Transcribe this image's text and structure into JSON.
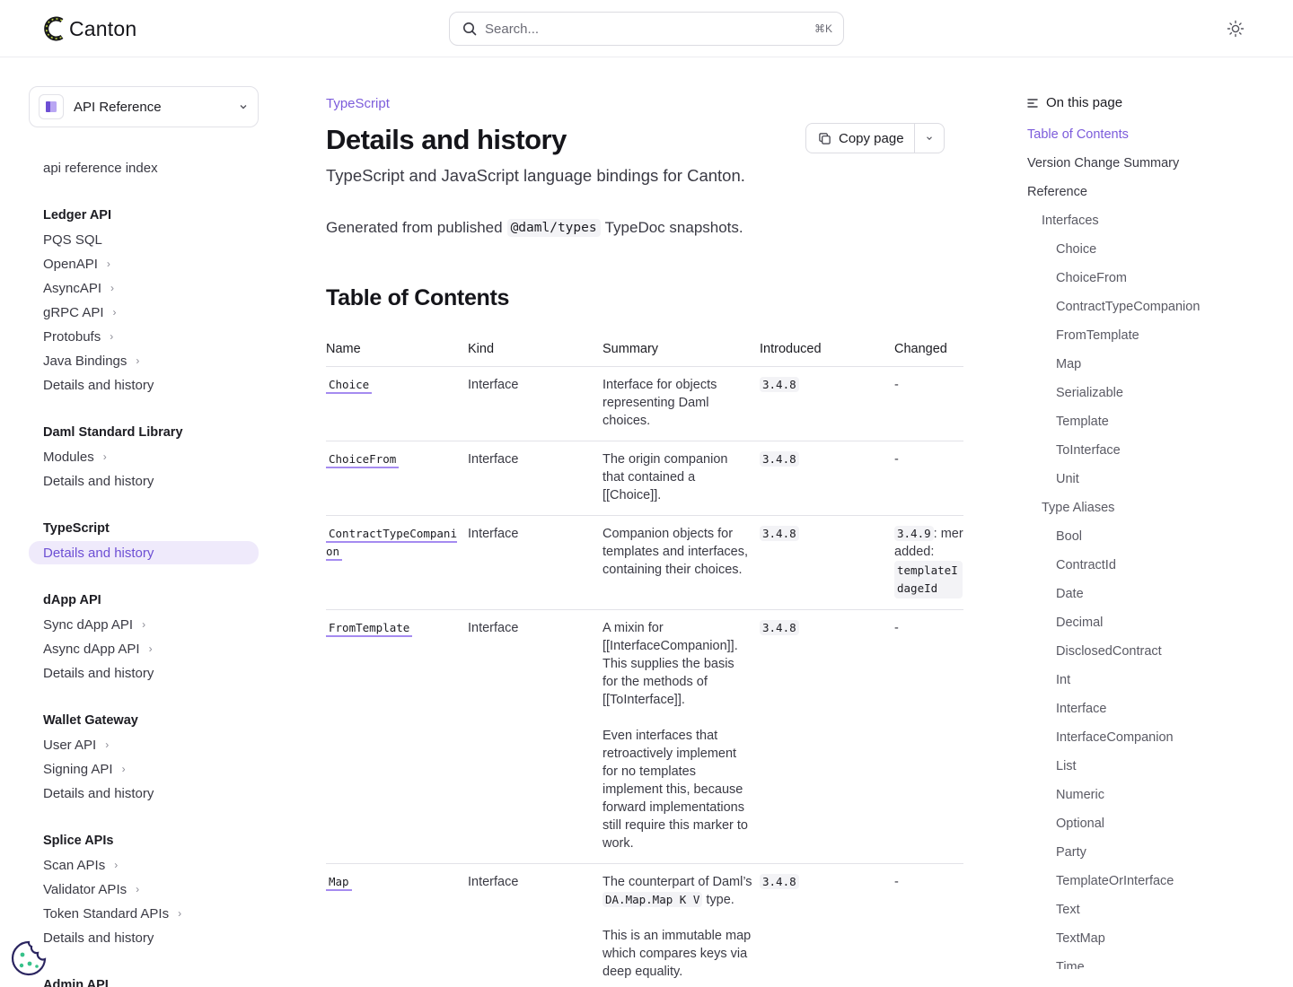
{
  "header": {
    "brand": "Canton",
    "search_placeholder": "Search...",
    "search_shortcut": "⌘K"
  },
  "sidebar": {
    "selector_label": "API Reference",
    "index_link": "api reference index",
    "sections": [
      {
        "heading": "Ledger API",
        "items": [
          {
            "label": "PQS SQL",
            "expandable": false
          },
          {
            "label": "OpenAPI",
            "expandable": true
          },
          {
            "label": "AsyncAPI",
            "expandable": true
          },
          {
            "label": "gRPC API",
            "expandable": true
          },
          {
            "label": "Protobufs",
            "expandable": true
          },
          {
            "label": "Java Bindings",
            "expandable": true
          },
          {
            "label": "Details and history",
            "expandable": false
          }
        ]
      },
      {
        "heading": "Daml Standard Library",
        "items": [
          {
            "label": "Modules",
            "expandable": true
          },
          {
            "label": "Details and history",
            "expandable": false
          }
        ]
      },
      {
        "heading": "TypeScript",
        "items": [
          {
            "label": "Details and history",
            "expandable": false,
            "active": true
          }
        ]
      },
      {
        "heading": "dApp API",
        "items": [
          {
            "label": "Sync dApp API",
            "expandable": true
          },
          {
            "label": "Async dApp API",
            "expandable": true
          },
          {
            "label": "Details and history",
            "expandable": false
          }
        ]
      },
      {
        "heading": "Wallet Gateway",
        "items": [
          {
            "label": "User API",
            "expandable": true
          },
          {
            "label": "Signing API",
            "expandable": true
          },
          {
            "label": "Details and history",
            "expandable": false
          }
        ]
      },
      {
        "heading": "Splice APIs",
        "items": [
          {
            "label": "Scan APIs",
            "expandable": true
          },
          {
            "label": "Validator APIs",
            "expandable": true
          },
          {
            "label": "Token Standard APIs",
            "expandable": true
          },
          {
            "label": "Details and history",
            "expandable": false
          }
        ]
      },
      {
        "heading": "Admin API",
        "items": []
      }
    ]
  },
  "main": {
    "breadcrumb": "TypeScript",
    "title": "Details and history",
    "copy_label": "Copy page",
    "subtitle": "TypeScript and JavaScript language bindings for Canton.",
    "generated_prefix": "Generated from published",
    "generated_code": "@daml/types",
    "generated_suffix": "TypeDoc snapshots.",
    "toc_heading": "Table of Contents",
    "table": {
      "headers": [
        "Name",
        "Kind",
        "Summary",
        "Introduced",
        "Changed"
      ],
      "rows": [
        {
          "name": "Choice",
          "kind": "Interface",
          "summary": [
            "Interface for objects representing Daml choices."
          ],
          "introduced": "3.4.8",
          "changed": "-"
        },
        {
          "name": "ChoiceFrom",
          "kind": "Interface",
          "summary": [
            "The origin companion that contained a [[Choice]]."
          ],
          "introduced": "3.4.8",
          "changed": "-"
        },
        {
          "name": "ContractTypeCompanion",
          "kind": "Interface",
          "summary": [
            "Companion objects for templates and interfaces, containing their choices."
          ],
          "introduced": "3.4.8",
          "changed_version": "3.4.9",
          "changed_text": ": mer added:",
          "changed_code": "templateIdageId"
        },
        {
          "name": "FromTemplate",
          "kind": "Interface",
          "summary": [
            "A mixin for [[InterfaceCompanion]]. This supplies the basis for the methods of [[ToInterface]].",
            "Even interfaces that retroactively implement for no templates implement this, because forward implementations still require this marker to work."
          ],
          "introduced": "3.4.8",
          "changed": "-"
        },
        {
          "name": "Map",
          "kind": "Interface",
          "summary_prefix": "The counterpart of Daml’s",
          "summary_code": "DA.Map.Map K V",
          "summary_suffix": "type.",
          "summary_extra": "This is an immutable map which compares keys via deep equality.",
          "introduced": "3.4.8",
          "changed": "-"
        }
      ]
    }
  },
  "rail": {
    "heading": "On this page",
    "items": [
      {
        "label": "Table of Contents",
        "level": 1,
        "current": true
      },
      {
        "label": "Version Change Summary",
        "level": 1
      },
      {
        "label": "Reference",
        "level": 1
      },
      {
        "label": "Interfaces",
        "level": 2
      },
      {
        "label": "Choice",
        "level": 3
      },
      {
        "label": "ChoiceFrom",
        "level": 3
      },
      {
        "label": "ContractTypeCompanion",
        "level": 3
      },
      {
        "label": "FromTemplate",
        "level": 3
      },
      {
        "label": "Map",
        "level": 3
      },
      {
        "label": "Serializable",
        "level": 3
      },
      {
        "label": "Template",
        "level": 3
      },
      {
        "label": "ToInterface",
        "level": 3
      },
      {
        "label": "Unit",
        "level": 3
      },
      {
        "label": "Type Aliases",
        "level": 2
      },
      {
        "label": "Bool",
        "level": 3
      },
      {
        "label": "ContractId",
        "level": 3
      },
      {
        "label": "Date",
        "level": 3
      },
      {
        "label": "Decimal",
        "level": 3
      },
      {
        "label": "DisclosedContract",
        "level": 3
      },
      {
        "label": "Int",
        "level": 3
      },
      {
        "label": "Interface",
        "level": 3
      },
      {
        "label": "InterfaceCompanion",
        "level": 3
      },
      {
        "label": "List",
        "level": 3
      },
      {
        "label": "Numeric",
        "level": 3
      },
      {
        "label": "Optional",
        "level": 3
      },
      {
        "label": "Party",
        "level": 3
      },
      {
        "label": "TemplateOrInterface",
        "level": 3
      },
      {
        "label": "Text",
        "level": 3
      },
      {
        "label": "TextMap",
        "level": 3
      },
      {
        "label": "Time",
        "level": 3
      }
    ]
  },
  "colors": {
    "accent": "#7c5cdb",
    "active_bg": "#efeafb",
    "border": "#e2e2e8"
  }
}
